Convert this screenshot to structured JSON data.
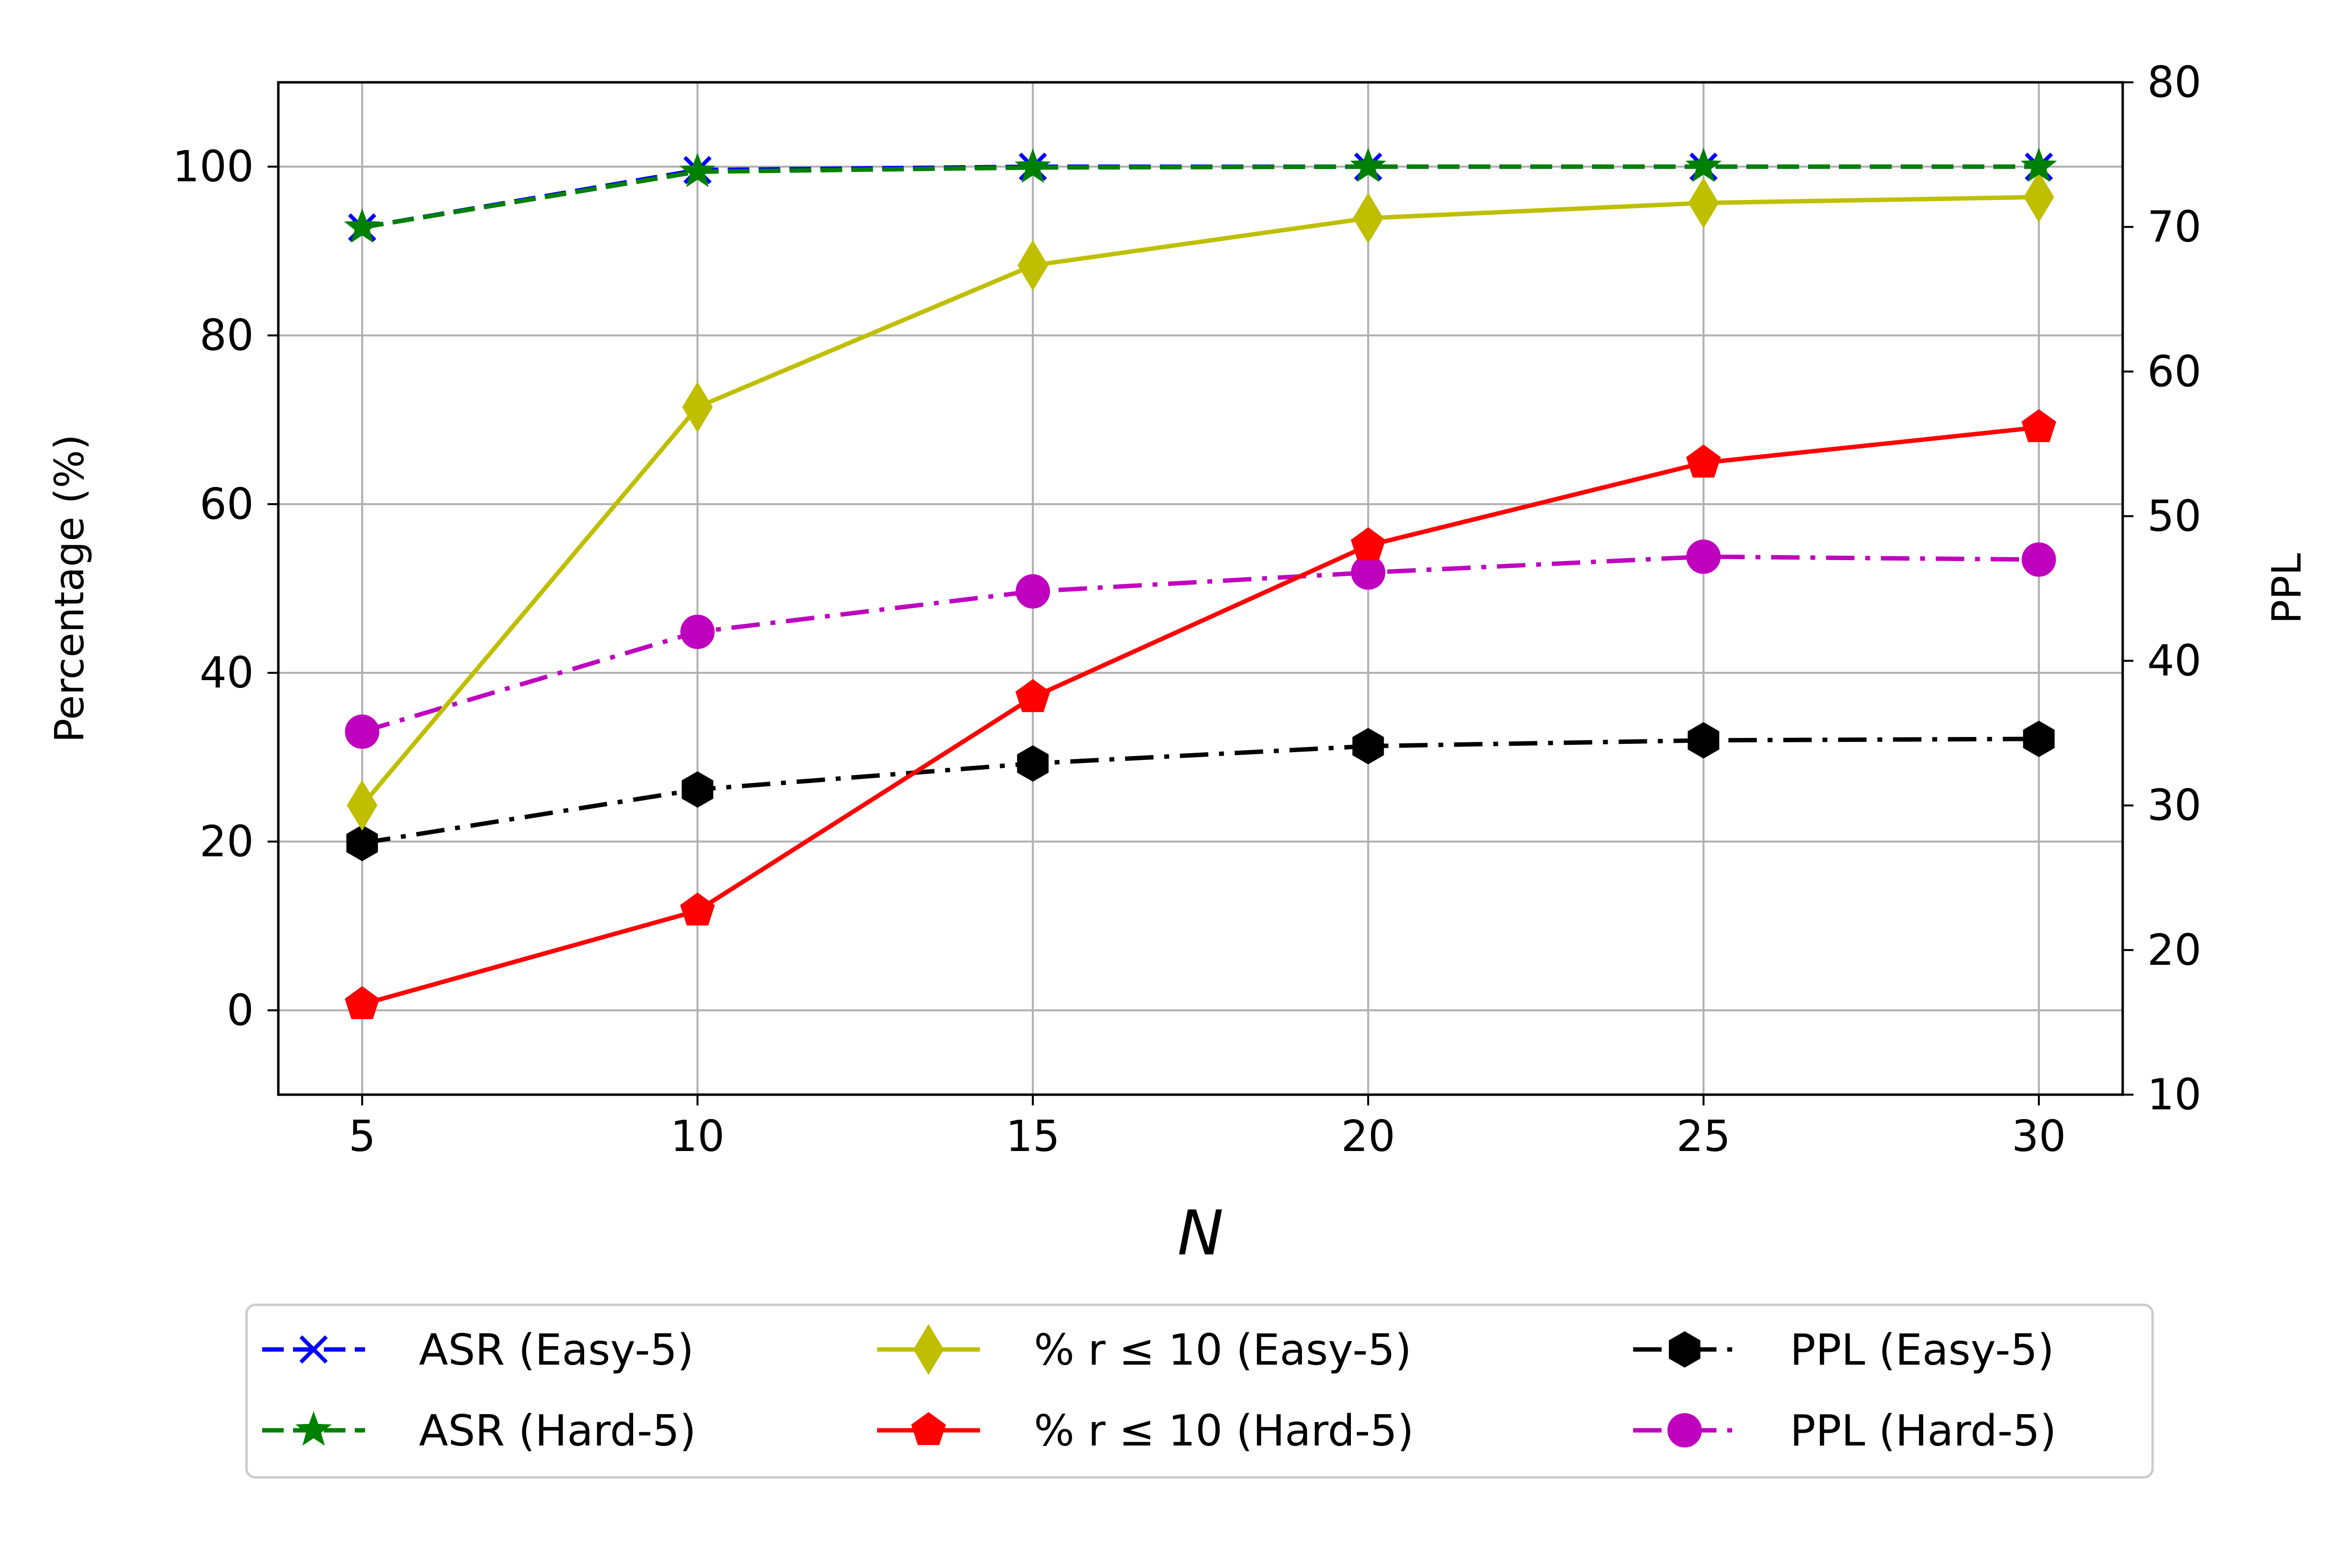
{
  "chart_data": {
    "type": "line",
    "xlabel": "N",
    "ylabel_left": "Percentage (%)",
    "ylabel_right": "PPL",
    "x": [
      5,
      10,
      15,
      20,
      25,
      30
    ],
    "xlim": [
      3.75,
      31.25
    ],
    "ylim_left": [
      -10,
      110
    ],
    "ylim_right": [
      10,
      80
    ],
    "xticks": [
      "5",
      "10",
      "15",
      "20",
      "25",
      "30"
    ],
    "yticks_left": [
      "0",
      "20",
      "40",
      "60",
      "80",
      "100"
    ],
    "yticks_right": [
      "10",
      "20",
      "30",
      "40",
      "50",
      "60",
      "70",
      "80"
    ],
    "grid": true,
    "legend_position": "bottom",
    "series": [
      {
        "name": "ASR (Easy-5)",
        "axis": "left",
        "color": "#0000ff",
        "dash": "dashed",
        "marker": "x",
        "values": [
          92.8,
          99.6,
          100,
          100,
          100,
          100
        ]
      },
      {
        "name": "ASR (Hard-5)",
        "axis": "left",
        "color": "#008000",
        "dash": "dashed",
        "marker": "star",
        "values": [
          92.8,
          99.4,
          99.9,
          100,
          100,
          100
        ]
      },
      {
        "name": "% r ≤ 10 (Easy-5)",
        "axis": "left",
        "color": "#bfbf00",
        "dash": "solid",
        "marker": "thin-diamond",
        "values": [
          24.3,
          71.5,
          88.3,
          93.9,
          95.7,
          96.4
        ]
      },
      {
        "name": "% r ≤ 10 (Hard-5)",
        "axis": "left",
        "color": "#ff0000",
        "dash": "solid",
        "marker": "pentagon",
        "values": [
          0.7,
          11.8,
          37.1,
          55.1,
          64.9,
          69.1
        ]
      },
      {
        "name": "PPL (Easy-5)",
        "axis": "right",
        "color": "#000000",
        "dash": "dashdot",
        "marker": "hexagon",
        "values": [
          27.4,
          31.1,
          32.9,
          34.1,
          34.5,
          34.6
        ]
      },
      {
        "name": "PPL (Hard-5)",
        "axis": "right",
        "color": "#bf00bf",
        "dash": "dashdot",
        "marker": "circle",
        "values": [
          35.1,
          42.0,
          44.8,
          46.1,
          47.2,
          47.0
        ]
      }
    ]
  }
}
